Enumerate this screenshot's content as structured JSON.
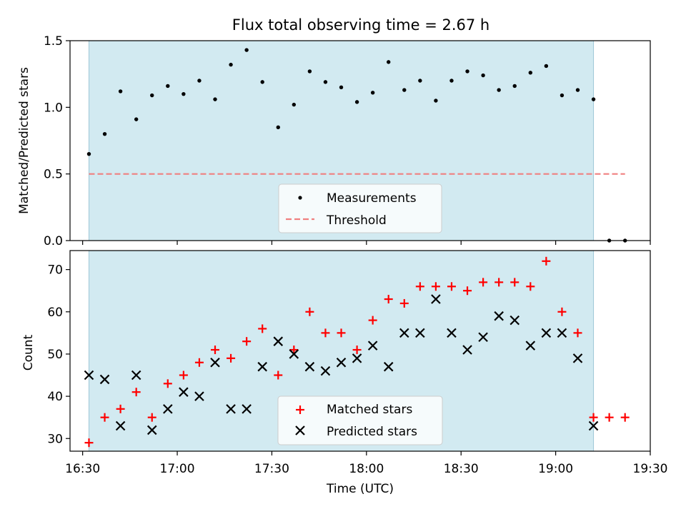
{
  "chart_data": [
    {
      "type": "scatter",
      "title": "Flux total observing time = 2.67 h",
      "ylabel": "Matched/Predicted stars",
      "ylim": [
        0,
        1.5
      ],
      "yticks": [
        0.0,
        0.5,
        1.0,
        1.5
      ],
      "ytick_labels": [
        "0.0",
        "0.5",
        "1.0",
        "1.5"
      ],
      "shaded_interval": [
        "16:32",
        "19:12"
      ],
      "shade_color": "#add8e6",
      "x": [
        "16:32",
        "16:37",
        "16:42",
        "16:47",
        "16:52",
        "16:57",
        "17:02",
        "17:07",
        "17:12",
        "17:17",
        "17:22",
        "17:27",
        "17:32",
        "17:37",
        "17:42",
        "17:47",
        "17:52",
        "17:57",
        "18:02",
        "18:07",
        "18:12",
        "18:17",
        "18:22",
        "18:27",
        "18:32",
        "18:37",
        "18:42",
        "18:47",
        "18:52",
        "18:57",
        "19:02",
        "19:07",
        "19:12",
        "19:17",
        "19:22"
      ],
      "series": [
        {
          "name": "Measurements",
          "marker": "dot",
          "color": "#000000",
          "values": [
            0.65,
            0.8,
            1.12,
            0.91,
            1.09,
            1.16,
            1.1,
            1.2,
            1.06,
            1.32,
            1.43,
            1.19,
            0.85,
            1.02,
            1.27,
            1.19,
            1.15,
            1.04,
            1.11,
            1.34,
            1.13,
            1.2,
            1.05,
            1.2,
            1.27,
            1.24,
            1.13,
            1.16,
            1.26,
            1.31,
            1.09,
            1.13,
            1.06,
            0.0,
            0.0
          ]
        },
        {
          "name": "Threshold",
          "marker": "dashed-line",
          "color": "#f08080",
          "x_range": [
            "16:32",
            "19:22"
          ],
          "value": 0.5
        }
      ],
      "legend": "lower-center"
    },
    {
      "type": "scatter",
      "xlabel": "Time (UTC)",
      "ylabel": "Count",
      "ylim": [
        27,
        74.5
      ],
      "yticks": [
        30,
        40,
        50,
        60,
        70
      ],
      "ytick_labels": [
        "30",
        "40",
        "50",
        "60",
        "70"
      ],
      "xlim": [
        "16:26",
        "19:30"
      ],
      "xticks": [
        "16:30",
        "17:00",
        "17:30",
        "18:00",
        "18:30",
        "19:00",
        "19:30"
      ],
      "shaded_interval": [
        "16:32",
        "19:12"
      ],
      "shade_color": "#add8e6",
      "x": [
        "16:32",
        "16:37",
        "16:42",
        "16:47",
        "16:52",
        "16:57",
        "17:02",
        "17:07",
        "17:12",
        "17:17",
        "17:22",
        "17:27",
        "17:32",
        "17:37",
        "17:42",
        "17:47",
        "17:52",
        "17:57",
        "18:02",
        "18:07",
        "18:12",
        "18:17",
        "18:22",
        "18:27",
        "18:32",
        "18:37",
        "18:42",
        "18:47",
        "18:52",
        "18:57",
        "19:02",
        "19:07",
        "19:12",
        "19:17",
        "19:22"
      ],
      "series": [
        {
          "name": "Matched stars",
          "marker": "plus",
          "color": "#ff0000",
          "values": [
            29,
            35,
            37,
            41,
            35,
            43,
            45,
            48,
            51,
            49,
            53,
            56,
            45,
            51,
            60,
            55,
            55,
            51,
            58,
            63,
            62,
            66,
            66,
            66,
            65,
            67,
            67,
            67,
            66,
            72,
            60,
            55,
            35,
            35,
            35
          ]
        },
        {
          "name": "Predicted stars",
          "marker": "x",
          "color": "#000000",
          "values": [
            45,
            44,
            33,
            45,
            32,
            37,
            41,
            40,
            48,
            37,
            37,
            47,
            53,
            50,
            47,
            46,
            48,
            49,
            52,
            47,
            55,
            55,
            63,
            55,
            51,
            54,
            59,
            58,
            52,
            55,
            55,
            49,
            33,
            null,
            null
          ]
        }
      ],
      "legend": "lower-center"
    }
  ]
}
